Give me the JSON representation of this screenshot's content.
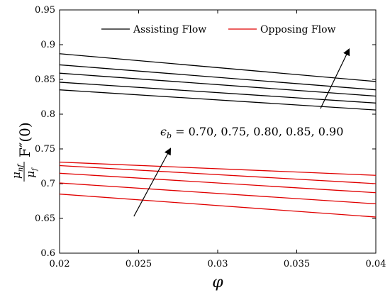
{
  "chart_data": {
    "type": "line",
    "xlabel": "φ",
    "ylabel": {
      "numerator": "μ",
      "numerator_sub": "nf",
      "denominator": "μ",
      "denominator_sub": "f",
      "rest": "F″(0)"
    },
    "xlim": [
      0.02,
      0.04
    ],
    "ylim": [
      0.6,
      0.95
    ],
    "xticks": [
      0.02,
      0.025,
      0.03,
      0.035,
      0.04
    ],
    "xtick_labels": [
      "0.02",
      "0.025",
      "0.03",
      "0.035",
      "0.04"
    ],
    "yticks": [
      0.6,
      0.65,
      0.7,
      0.75,
      0.8,
      0.85,
      0.9,
      0.95
    ],
    "ytick_labels": [
      "0.6",
      "0.65",
      "0.7",
      "0.75",
      "0.8",
      "0.85",
      "0.9",
      "0.95"
    ],
    "grid": false,
    "legend": {
      "placement": "top",
      "entries": [
        {
          "label": "Assisting Flow",
          "color": "#000000"
        },
        {
          "label": "Opposing Flow",
          "color": "#e00000"
        }
      ]
    },
    "annotation": "ϵ_b = 0.70, 0.75, 0.80, 0.85, 0.90",
    "annotation_parts": {
      "sym": "ϵ",
      "sub": "b",
      "rest": " = 0.70, 0.75, 0.80, 0.85, 0.90"
    },
    "arrows": [
      {
        "from": [
          0.0365,
          0.808
        ],
        "to": [
          0.0383,
          0.893
        ]
      },
      {
        "from": [
          0.0247,
          0.653
        ],
        "to": [
          0.027,
          0.75
        ]
      }
    ],
    "series": [
      {
        "group": "Assisting Flow",
        "color": "#000000",
        "x": [
          0.02,
          0.04
        ],
        "y": [
          0.887,
          0.847
        ]
      },
      {
        "group": "Assisting Flow",
        "color": "#000000",
        "x": [
          0.02,
          0.04
        ],
        "y": [
          0.871,
          0.835
        ]
      },
      {
        "group": "Assisting Flow",
        "color": "#000000",
        "x": [
          0.02,
          0.04
        ],
        "y": [
          0.859,
          0.826
        ]
      },
      {
        "group": "Assisting Flow",
        "color": "#000000",
        "x": [
          0.02,
          0.04
        ],
        "y": [
          0.846,
          0.816
        ]
      },
      {
        "group": "Assisting Flow",
        "color": "#000000",
        "x": [
          0.02,
          0.04
        ],
        "y": [
          0.835,
          0.806
        ]
      },
      {
        "group": "Opposing Flow",
        "color": "#e00000",
        "x": [
          0.02,
          0.04
        ],
        "y": [
          0.731,
          0.712
        ]
      },
      {
        "group": "Opposing Flow",
        "color": "#e00000",
        "x": [
          0.02,
          0.04
        ],
        "y": [
          0.726,
          0.7
        ]
      },
      {
        "group": "Opposing Flow",
        "color": "#e00000",
        "x": [
          0.02,
          0.04
        ],
        "y": [
          0.715,
          0.687
        ]
      },
      {
        "group": "Opposing Flow",
        "color": "#e00000",
        "x": [
          0.02,
          0.04
        ],
        "y": [
          0.701,
          0.671
        ]
      },
      {
        "group": "Opposing Flow",
        "color": "#e00000",
        "x": [
          0.02,
          0.04
        ],
        "y": [
          0.685,
          0.652
        ]
      }
    ]
  }
}
